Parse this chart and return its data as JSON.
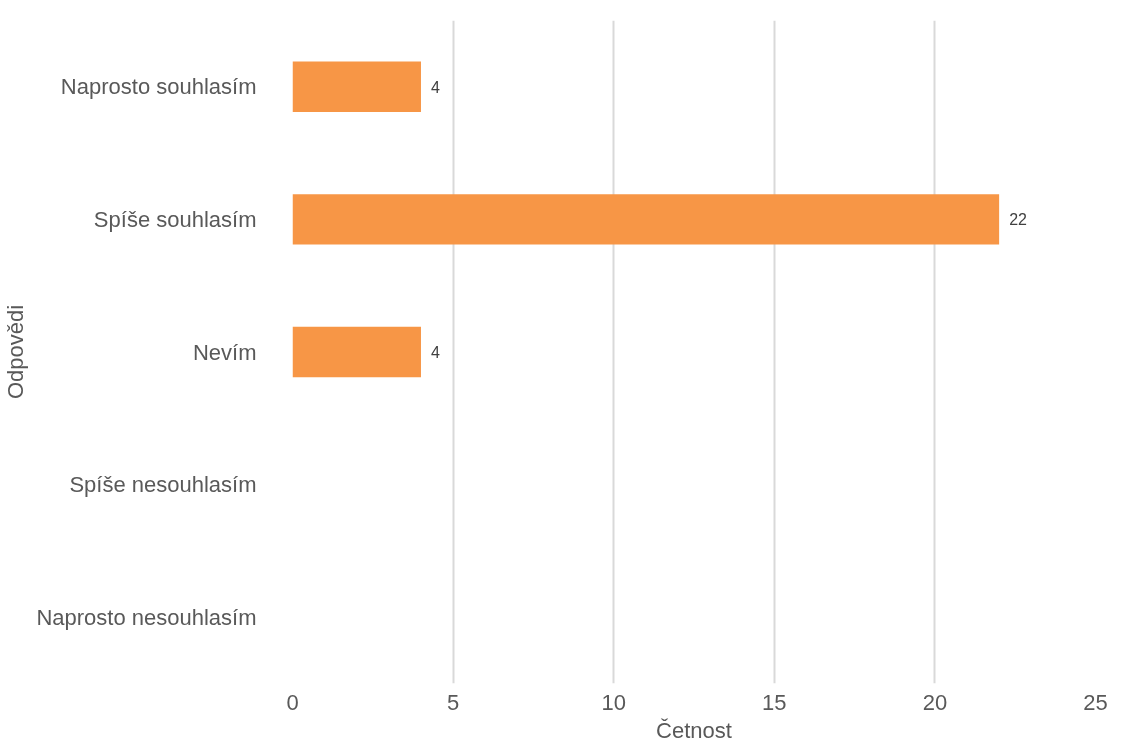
{
  "chart_data": {
    "type": "bar",
    "orientation": "horizontal",
    "xlabel": "Četnost",
    "ylabel": "Odpovědi",
    "categories": [
      "Naprosto souhlasím",
      "Spíše souhlasím",
      "Nevím",
      "Spíše nesouhlasím",
      "Naprosto nesouhlasím"
    ],
    "values": [
      4,
      22,
      4,
      0,
      0
    ],
    "value_labels": [
      "4",
      "22",
      "4",
      null,
      null
    ],
    "color": "#f79646",
    "xlim": [
      0,
      25
    ],
    "xticks": [
      0,
      5,
      10,
      15,
      20,
      25
    ],
    "grid": "x"
  }
}
